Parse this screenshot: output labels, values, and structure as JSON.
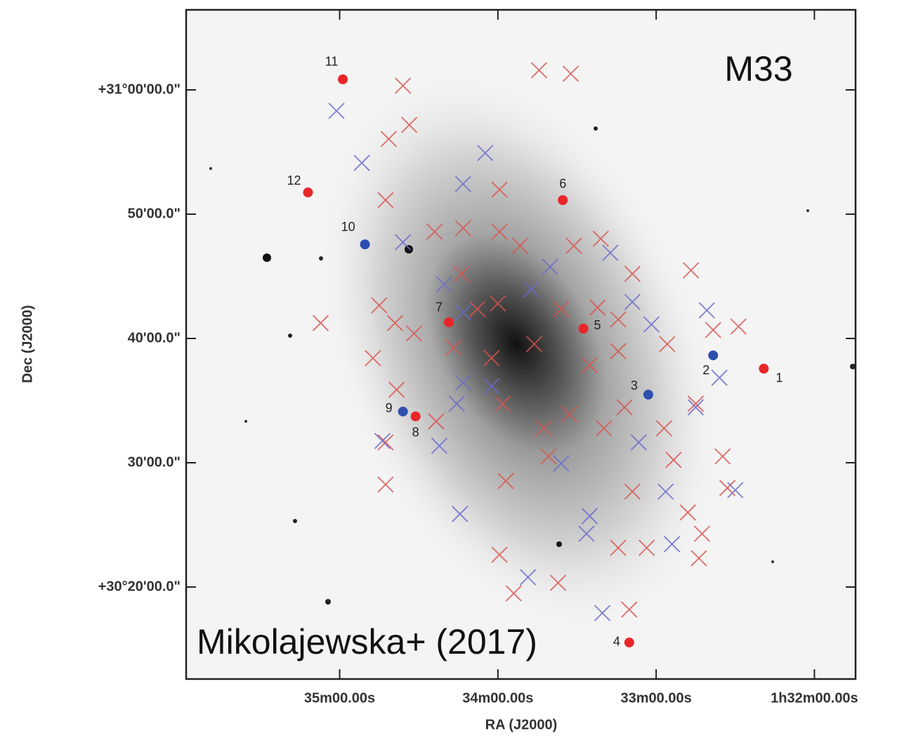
{
  "chart_data": {
    "type": "scatter",
    "annotations": [
      "M33",
      "Mikolajewska+ (2017)"
    ],
    "x_label": "RA (J2000)",
    "y_label": "Dec (J2000)",
    "xlim": [
      35.97,
      31.74
    ],
    "ylim": [
      12.6,
      66.44
    ],
    "xticks": [
      {
        "value": 35,
        "label": "35m00.00s"
      },
      {
        "value": 34,
        "label": "34m00.00s"
      },
      {
        "value": 33,
        "label": "33m00.00s"
      },
      {
        "value": 32,
        "label": "1h32m00.00s"
      }
    ],
    "yticks": [
      {
        "value": 60,
        "label": "+31°00'00.0\""
      },
      {
        "value": 50,
        "label": "50'00.0\""
      },
      {
        "value": 40,
        "label": "40'00.0\""
      },
      {
        "value": 30,
        "label": "30'00.0\""
      },
      {
        "value": 20,
        "label": "+30°20'00.0\""
      }
    ],
    "series": [
      {
        "color": "#d9534f",
        "marker": "x",
        "x": [
          33.74,
          33.54,
          34.6,
          34.56,
          34.69,
          34.71,
          33.99,
          34.4,
          34.22,
          33.99,
          33.86,
          33.52,
          33.35,
          34.23,
          32.78,
          33.15,
          34.75,
          35.12,
          34.65,
          34.53,
          34.13,
          34.0,
          33.77,
          33.6,
          33.37,
          33.24,
          32.93,
          32.64,
          32.48,
          34.79,
          34.28,
          34.04,
          33.42,
          33.24,
          34.64,
          34.39,
          33.97,
          33.71,
          33.55,
          33.33,
          33.2,
          32.95,
          32.75,
          32.58,
          34.71,
          34.71,
          33.95,
          33.68,
          33.15,
          32.89,
          32.8,
          32.71,
          32.55,
          33.24,
          33.06,
          33.99,
          33.62,
          33.9,
          33.17,
          32.73
        ],
        "values": [
          61.58,
          61.3,
          60.34,
          57.18,
          56.05,
          51.13,
          51.98,
          48.59,
          48.87,
          48.59,
          47.46,
          47.46,
          48.02,
          45.2,
          45.48,
          45.2,
          42.66,
          41.24,
          41.24,
          40.4,
          42.37,
          42.82,
          39.55,
          42.37,
          42.49,
          41.53,
          39.55,
          40.68,
          40.96,
          38.42,
          39.27,
          38.42,
          37.85,
          38.98,
          35.88,
          33.33,
          34.75,
          32.77,
          33.9,
          32.77,
          34.46,
          32.77,
          34.75,
          30.51,
          31.64,
          28.25,
          28.53,
          30.51,
          27.68,
          30.23,
          26.0,
          24.29,
          27.97,
          23.16,
          23.16,
          22.6,
          20.34,
          19.49,
          18.19,
          22.32
        ]
      },
      {
        "color": "#6a6acf",
        "marker": "x",
        "x": [
          35.02,
          34.86,
          34.08,
          34.22,
          34.6,
          33.67,
          34.34,
          34.22,
          33.79,
          33.29,
          33.15,
          33.03,
          32.68,
          32.6,
          34.22,
          34.04,
          34.26,
          34.73,
          34.37,
          33.6,
          33.11,
          32.75,
          32.94,
          32.5,
          34.24,
          33.42,
          33.44,
          32.9,
          33.81,
          33.34
        ],
        "values": [
          58.31,
          54.12,
          54.92,
          52.43,
          47.74,
          45.76,
          44.35,
          42.09,
          43.95,
          46.89,
          42.94,
          41.13,
          42.26,
          36.84,
          36.44,
          36.16,
          34.75,
          31.75,
          31.36,
          29.94,
          31.64,
          34.46,
          27.68,
          27.8,
          25.88,
          25.71,
          24.29,
          23.45,
          20.79,
          17.91
        ]
      }
    ],
    "labeled_points": {
      "labels": [
        "1",
        "2",
        "3",
        "4",
        "5",
        "6",
        "7",
        "8",
        "9",
        "10",
        "11",
        "12"
      ],
      "x": [
        32.32,
        32.64,
        33.05,
        33.17,
        33.46,
        33.59,
        34.31,
        34.52,
        34.6,
        34.84,
        34.98,
        35.2
      ],
      "values": [
        37.57,
        38.64,
        35.48,
        15.54,
        40.79,
        51.13,
        41.3,
        33.73,
        34.12,
        47.57,
        60.85,
        51.75
      ],
      "colors": [
        "#e8262a",
        "#2f4fb0",
        "#2f4fb0",
        "#e8262a",
        "#e8262a",
        "#e8262a",
        "#e8262a",
        "#e8262a",
        "#2f4fb0",
        "#2f4fb0",
        "#e8262a",
        "#e8262a"
      ]
    }
  }
}
